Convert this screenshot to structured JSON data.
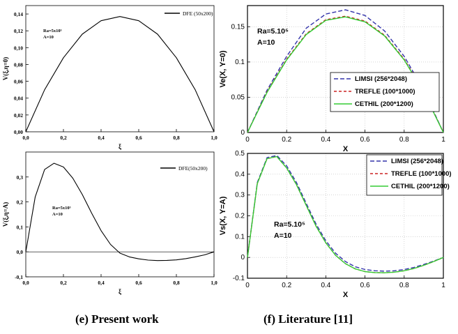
{
  "captions": {
    "left": "(e) Present work",
    "right": "(f) Literature  [11]"
  },
  "chart_data": [
    {
      "id": "e-top",
      "type": "line",
      "xlabel": "ξ",
      "ylabel": "V(ξ,η=0)",
      "xlim": [
        0,
        1
      ],
      "ylim": [
        0,
        0.15
      ],
      "xticks": [
        "0,0",
        "0,2",
        "0,4",
        "0,6",
        "0,8",
        "1,0"
      ],
      "yticks": [
        "0,00",
        "0,02",
        "0,04",
        "0,06",
        "0,08",
        "0,10",
        "0,12",
        "0,14"
      ],
      "annotations": [
        "Ra=5x10⁵",
        "A=10"
      ],
      "legend": "top-right",
      "grid": false,
      "series": [
        {
          "name": "DFE (50x200)",
          "color": "#000000",
          "x": [
            0,
            0.1,
            0.2,
            0.3,
            0.4,
            0.5,
            0.6,
            0.7,
            0.8,
            0.9,
            1.0
          ],
          "y": [
            0,
            0.05,
            0.088,
            0.116,
            0.132,
            0.137,
            0.132,
            0.116,
            0.088,
            0.05,
            0
          ]
        }
      ]
    },
    {
      "id": "e-bottom",
      "type": "line",
      "xlabel": "ξ",
      "ylabel": "V(ξ,η=A)",
      "xlim": [
        0,
        1
      ],
      "ylim": [
        -0.1,
        0.4
      ],
      "xticks": [
        "0,0",
        "0,2",
        "0,4",
        "0,6",
        "0,8",
        "1,0"
      ],
      "yticks": [
        "-0,1",
        "0,0",
        "0,1",
        "0,2",
        "0,3"
      ],
      "annotations": [
        "Ra=5x10⁵",
        "A=10"
      ],
      "legend": "top-right",
      "grid": false,
      "series": [
        {
          "name": "DFE(50x200)",
          "color": "#000000",
          "x": [
            0,
            0.05,
            0.1,
            0.15,
            0.2,
            0.25,
            0.3,
            0.35,
            0.4,
            0.45,
            0.5,
            0.55,
            0.6,
            0.65,
            0.7,
            0.75,
            0.8,
            0.85,
            0.9,
            0.95,
            1.0
          ],
          "y": [
            0,
            0.22,
            0.33,
            0.355,
            0.34,
            0.295,
            0.23,
            0.155,
            0.085,
            0.03,
            -0.005,
            -0.02,
            -0.028,
            -0.033,
            -0.035,
            -0.034,
            -0.032,
            -0.027,
            -0.02,
            -0.012,
            0
          ]
        }
      ]
    },
    {
      "id": "f-top",
      "type": "line",
      "xlabel": "X",
      "ylabel": "Ve(X, Y=0)",
      "xlim": [
        0,
        1
      ],
      "ylim": [
        0,
        0.18
      ],
      "xticks": [
        "0",
        "0.2",
        "0.4",
        "0.6",
        "0.8",
        "1"
      ],
      "yticks": [
        "0",
        "0.05",
        "0.1",
        "0.15"
      ],
      "annotations": [
        "Ra=5.10⁵",
        "A=10"
      ],
      "legend": "center-right",
      "grid": true,
      "series": [
        {
          "name": "LIMSI (256*2048)",
          "color": "#3333aa",
          "dash": "6,3",
          "x": [
            0,
            0.1,
            0.2,
            0.3,
            0.4,
            0.5,
            0.6,
            0.7,
            0.8,
            0.9,
            1.0
          ],
          "y": [
            0,
            0.06,
            0.108,
            0.148,
            0.168,
            0.174,
            0.166,
            0.144,
            0.108,
            0.06,
            0
          ]
        },
        {
          "name": "TREFLE (100*1000)",
          "color": "#cc2222",
          "dash": "4,3",
          "x": [
            0,
            0.1,
            0.2,
            0.3,
            0.4,
            0.5,
            0.6,
            0.7,
            0.8,
            0.9,
            1.0
          ],
          "y": [
            0,
            0.058,
            0.104,
            0.14,
            0.16,
            0.165,
            0.158,
            0.138,
            0.104,
            0.058,
            0
          ]
        },
        {
          "name": "CETHIL (200*1200)",
          "color": "#33cc33",
          "dash": "",
          "x": [
            0,
            0.1,
            0.2,
            0.3,
            0.4,
            0.5,
            0.6,
            0.7,
            0.8,
            0.9,
            1.0
          ],
          "y": [
            0,
            0.057,
            0.103,
            0.139,
            0.159,
            0.164,
            0.157,
            0.137,
            0.103,
            0.057,
            0
          ]
        }
      ]
    },
    {
      "id": "f-bottom",
      "type": "line",
      "xlabel": "X",
      "ylabel": "Vs(X, Y=A)",
      "xlim": [
        0,
        1
      ],
      "ylim": [
        -0.1,
        0.5
      ],
      "xticks": [
        "0",
        "0.2",
        "0.4",
        "0.6",
        "0.8",
        "1"
      ],
      "yticks": [
        "-0.1",
        "0",
        "0.1",
        "0.2",
        "0.3",
        "0.4",
        "0.5"
      ],
      "annotations": [
        "Ra=5.10⁵",
        "A=10"
      ],
      "legend": "top-right",
      "grid": true,
      "series": [
        {
          "name": "LIMSI (256*2048)",
          "color": "#3333aa",
          "dash": "6,3",
          "x": [
            0,
            0.05,
            0.1,
            0.15,
            0.2,
            0.25,
            0.3,
            0.35,
            0.4,
            0.45,
            0.5,
            0.55,
            0.6,
            0.65,
            0.7,
            0.75,
            0.8,
            0.85,
            0.9,
            0.95,
            1.0
          ],
          "y": [
            0,
            0.36,
            0.48,
            0.49,
            0.44,
            0.36,
            0.26,
            0.16,
            0.08,
            0.02,
            -0.02,
            -0.045,
            -0.058,
            -0.064,
            -0.066,
            -0.064,
            -0.058,
            -0.048,
            -0.034,
            -0.018,
            0
          ]
        },
        {
          "name": "TREFLE (100*1000)",
          "color": "#cc2222",
          "dash": "4,3",
          "x": [
            0,
            0.05,
            0.1,
            0.15,
            0.2,
            0.25,
            0.3,
            0.35,
            0.4,
            0.45,
            0.5,
            0.55,
            0.6,
            0.65,
            0.7,
            0.75,
            0.8,
            0.85,
            0.9,
            0.95,
            1.0
          ],
          "y": [
            0,
            0.355,
            0.475,
            0.485,
            0.43,
            0.35,
            0.25,
            0.15,
            0.07,
            0.01,
            -0.03,
            -0.055,
            -0.068,
            -0.073,
            -0.074,
            -0.071,
            -0.064,
            -0.053,
            -0.038,
            -0.02,
            0
          ]
        },
        {
          "name": "CETHIL (200*1200)",
          "color": "#33cc33",
          "dash": "",
          "x": [
            0,
            0.05,
            0.1,
            0.15,
            0.2,
            0.25,
            0.3,
            0.35,
            0.4,
            0.45,
            0.5,
            0.55,
            0.6,
            0.65,
            0.7,
            0.75,
            0.8,
            0.85,
            0.9,
            0.95,
            1.0
          ],
          "y": [
            0,
            0.355,
            0.475,
            0.485,
            0.43,
            0.35,
            0.25,
            0.15,
            0.07,
            0.01,
            -0.03,
            -0.055,
            -0.068,
            -0.073,
            -0.074,
            -0.071,
            -0.064,
            -0.053,
            -0.038,
            -0.02,
            0
          ]
        }
      ]
    }
  ]
}
